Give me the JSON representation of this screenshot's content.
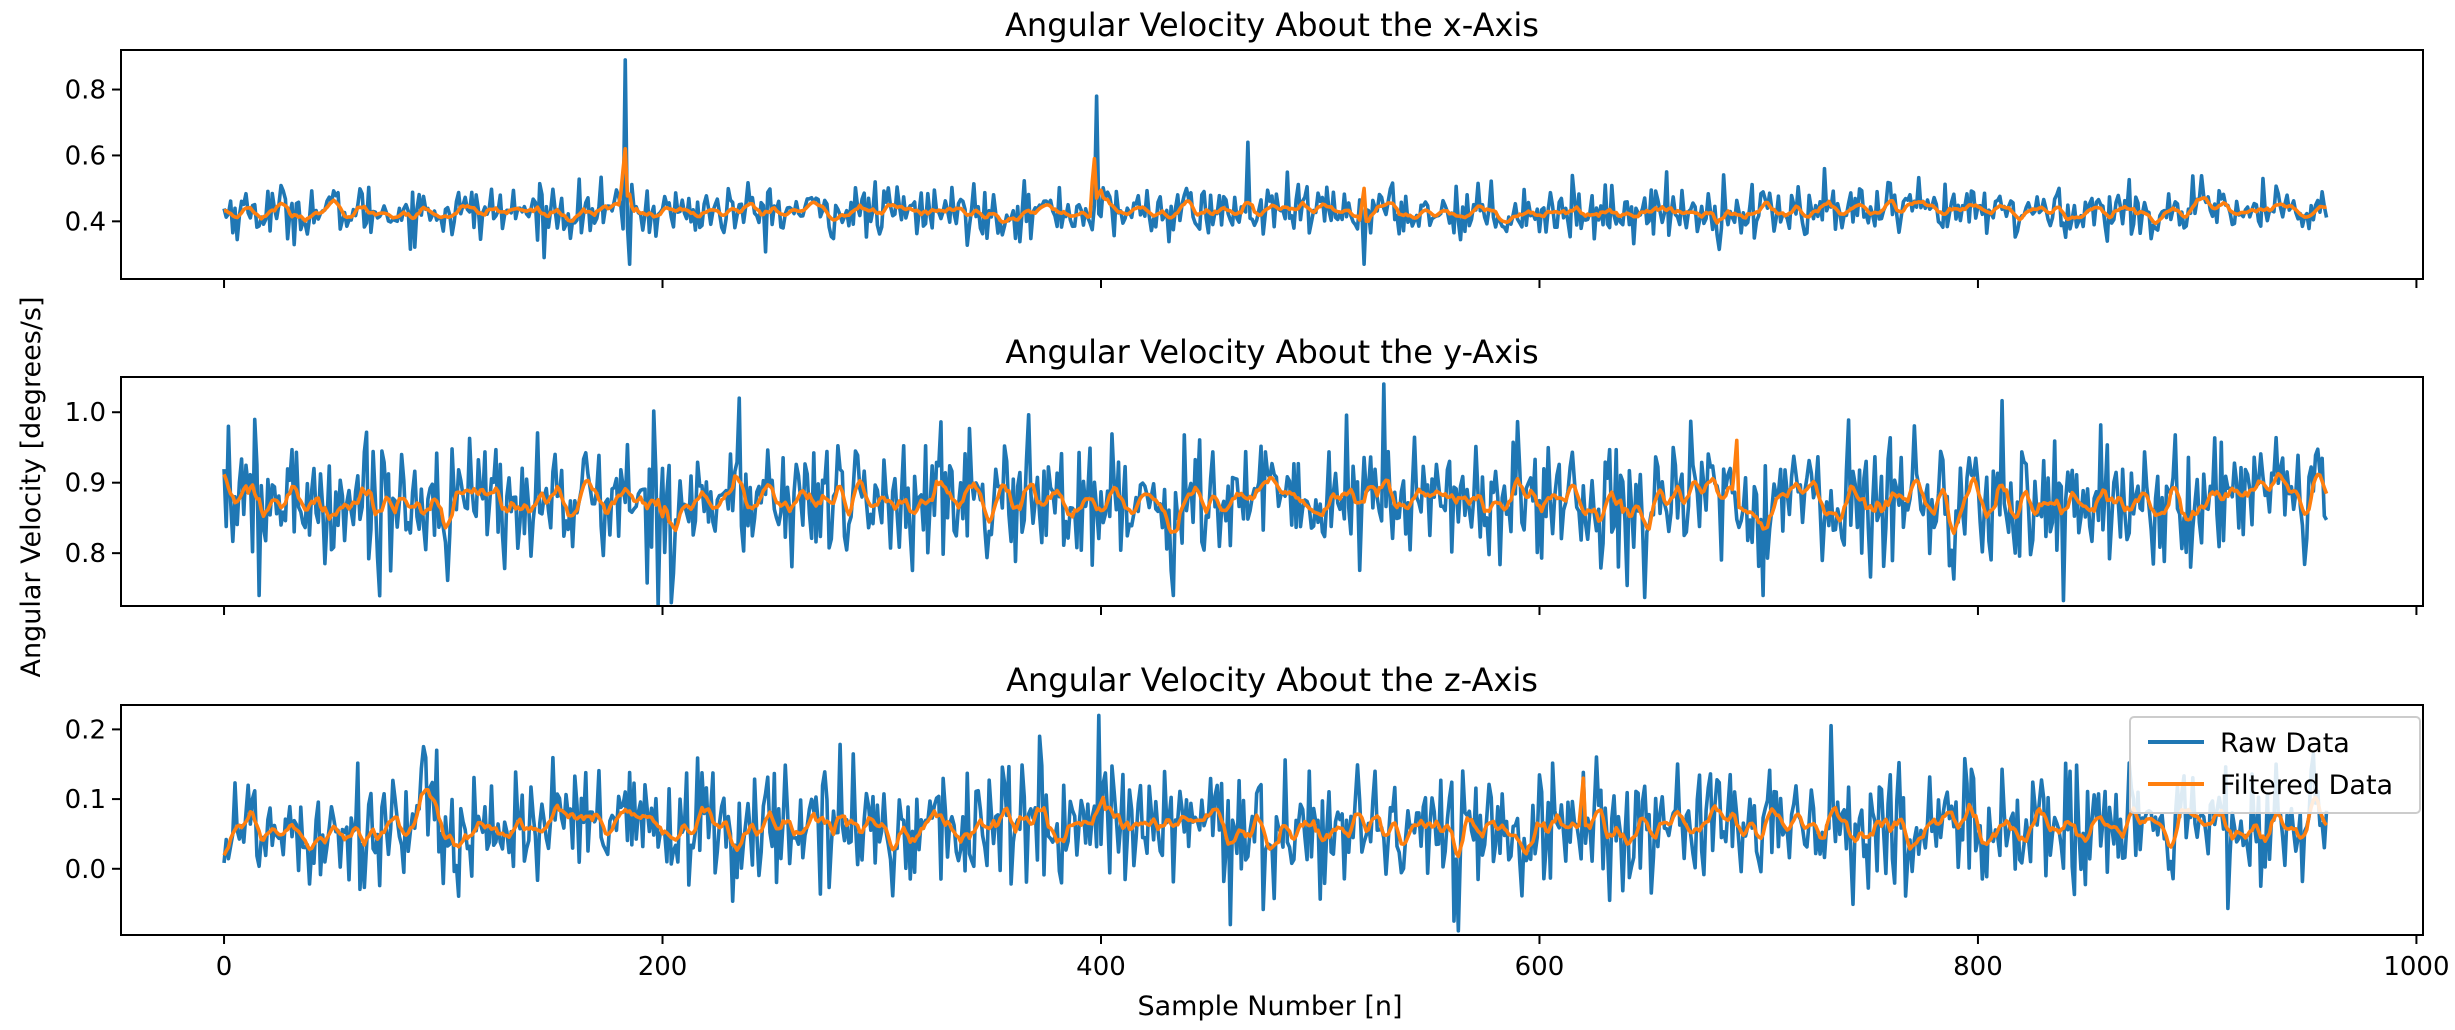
{
  "figure": {
    "ylabel": "Angular Velocity [degrees/s]",
    "xlabel": "Sample Number [n]"
  },
  "legend": {
    "placement": "right of bottom panel",
    "entries": [
      {
        "label": "Raw Data",
        "color": "#1f77b4"
      },
      {
        "label": "Filtered Data",
        "color": "#ff7f0e"
      }
    ]
  },
  "chart_data": [
    {
      "type": "line",
      "title": "Angular Velocity About the x-Axis",
      "xlim": [
        -47,
        1003
      ],
      "ylim": [
        0.225,
        0.92
      ],
      "yticks": [
        "0.4",
        "0.6",
        "0.8"
      ],
      "xticks": [
        "0",
        "200",
        "400",
        "600",
        "800",
        "1000"
      ],
      "x_tick_labels_shown": false,
      "n_samples": 960,
      "series": [
        {
          "color": "#1f77b4",
          "mean": 0.43,
          "std": 0.04,
          "spikes": [
            {
              "x": 183,
              "y": 0.89
            },
            {
              "x": 185,
              "y": 0.27
            },
            {
              "x": 398,
              "y": 0.78
            },
            {
              "x": 467,
              "y": 0.64
            },
            {
              "x": 520,
              "y": 0.27
            },
            {
              "x": 730,
              "y": 0.56
            }
          ]
        },
        {
          "color": "#ff7f0e",
          "mean": 0.43,
          "std": 0.022,
          "spikes": [
            {
              "x": 183,
              "y": 0.62
            },
            {
              "x": 397,
              "y": 0.59
            },
            {
              "x": 520,
              "y": 0.5
            }
          ]
        }
      ]
    },
    {
      "type": "line",
      "title": "Angular Velocity About the y-Axis",
      "xlim": [
        -47,
        1003
      ],
      "ylim": [
        0.725,
        1.05
      ],
      "yticks": [
        "0.8",
        "0.9",
        "1.0"
      ],
      "xticks": [
        "0",
        "200",
        "400",
        "600",
        "800",
        "1000"
      ],
      "x_tick_labels_shown": false,
      "n_samples": 960,
      "series": [
        {
          "color": "#1f77b4",
          "mean": 0.875,
          "std": 0.045,
          "spikes": [
            {
              "x": 2,
              "y": 0.98
            },
            {
              "x": 16,
              "y": 0.74
            },
            {
              "x": 235,
              "y": 1.02
            },
            {
              "x": 433,
              "y": 0.74
            },
            {
              "x": 529,
              "y": 1.04
            },
            {
              "x": 702,
              "y": 0.74
            }
          ]
        },
        {
          "color": "#ff7f0e",
          "mean": 0.875,
          "std": 0.025,
          "spikes": [
            {
              "x": 690,
              "y": 0.96
            }
          ]
        }
      ]
    },
    {
      "type": "line",
      "title": "Angular Velocity About the z-Axis",
      "xlim": [
        -47,
        1003
      ],
      "ylim": [
        -0.095,
        0.235
      ],
      "yticks": [
        "0.0",
        "0.1",
        "0.2"
      ],
      "xticks": [
        "0",
        "200",
        "400",
        "600",
        "800",
        "1000"
      ],
      "x_tick_labels_shown": true,
      "n_samples": 960,
      "series": [
        {
          "color": "#1f77b4",
          "mean": 0.06,
          "std": 0.045,
          "spikes": [
            {
              "x": 372,
              "y": 0.19
            },
            {
              "x": 399,
              "y": 0.22
            },
            {
              "x": 459,
              "y": -0.08
            },
            {
              "x": 561,
              "y": -0.075
            },
            {
              "x": 97,
              "y": 0.17
            }
          ]
        },
        {
          "color": "#ff7f0e",
          "mean": 0.06,
          "std": 0.025,
          "spikes": [
            {
              "x": 620,
              "y": 0.13
            }
          ]
        }
      ]
    }
  ]
}
